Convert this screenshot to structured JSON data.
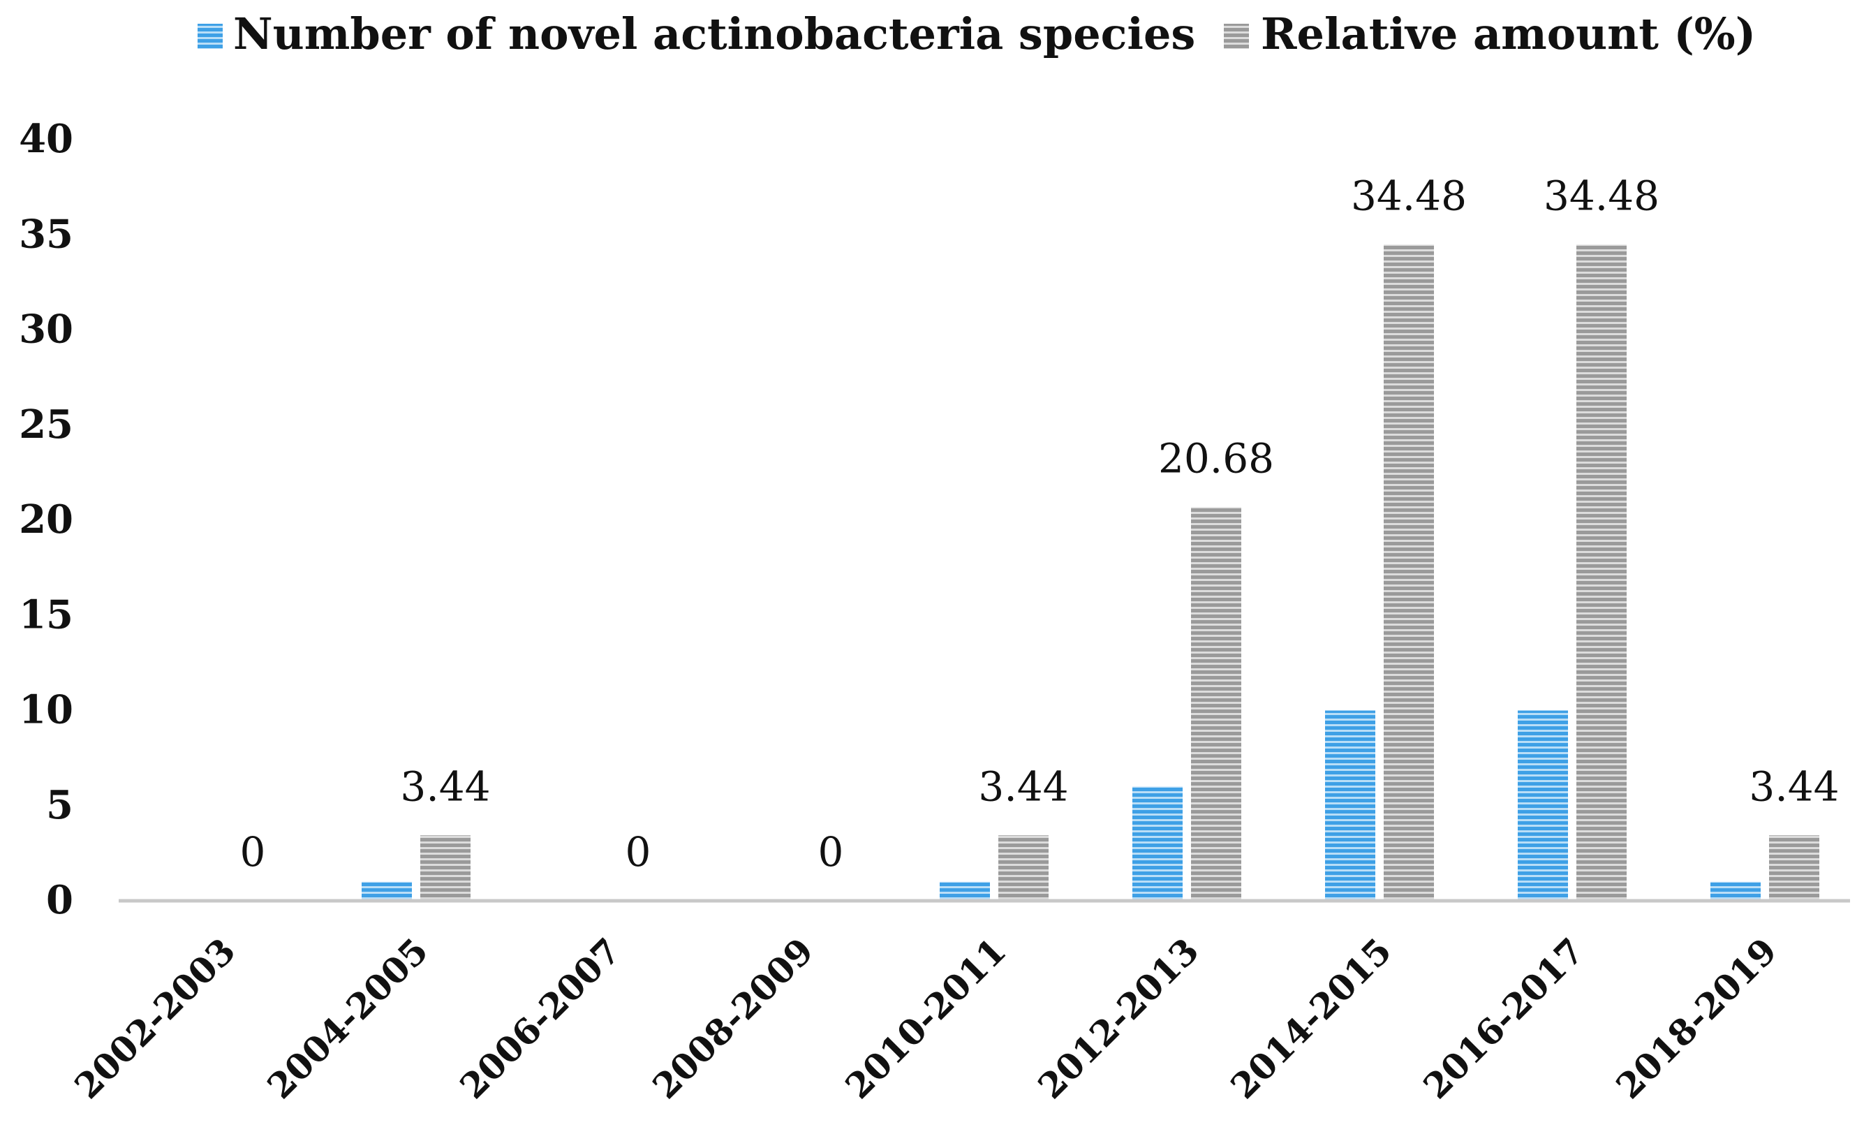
{
  "chart_data": {
    "type": "bar",
    "title": "",
    "xlabel": "",
    "ylabel": "",
    "ylim": [
      0,
      40
    ],
    "yticks": [
      0,
      5,
      10,
      15,
      20,
      25,
      30,
      35,
      40
    ],
    "categories": [
      "2002-2003",
      "2004-2005",
      "2006-2007",
      "2008-2009",
      "2010-2011",
      "2012-2013",
      "2014-2015",
      "2016-2017",
      "2018-2019"
    ],
    "series": [
      {
        "name": "Number of novel actinobacteria species",
        "values": [
          0,
          1,
          0,
          0,
          1,
          6,
          10,
          10,
          1
        ],
        "color": "#3ea0e6"
      },
      {
        "name": "Relative amount (%)",
        "values": [
          0,
          3.44,
          0,
          0,
          3.44,
          20.68,
          34.48,
          34.48,
          3.44
        ],
        "color": "#a6a6a6"
      }
    ],
    "data_labels": [
      "0",
      "3.44",
      "0",
      "0",
      "3.44",
      "20.68",
      "34.48",
      "34.48",
      "3.44"
    ],
    "legend_position": "top",
    "grid": false
  }
}
